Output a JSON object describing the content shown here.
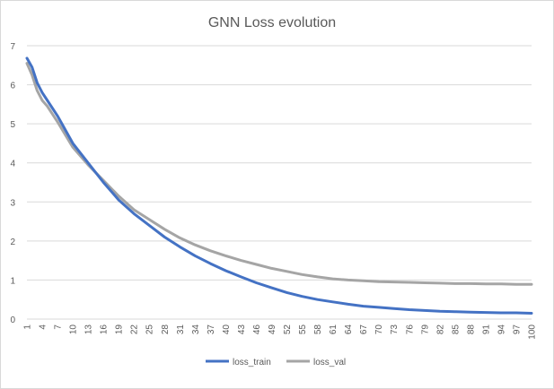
{
  "chart_data": {
    "type": "line",
    "title": "GNN Loss evolution",
    "xlabel": "",
    "ylabel": "",
    "ylim": [
      0,
      7
    ],
    "yticks": [
      0,
      1,
      2,
      3,
      4,
      5,
      6,
      7
    ],
    "xlim": [
      1,
      100
    ],
    "xticks": [
      1,
      4,
      7,
      10,
      13,
      16,
      19,
      22,
      25,
      28,
      31,
      34,
      37,
      40,
      43,
      46,
      49,
      52,
      55,
      58,
      61,
      64,
      67,
      70,
      73,
      76,
      79,
      82,
      85,
      88,
      91,
      94,
      97,
      100
    ],
    "grid": true,
    "legend_position": "bottom",
    "series": [
      {
        "name": "loss_train",
        "color": "#4472c4",
        "x": [
          1,
          2,
          3,
          4,
          5,
          7,
          10,
          13,
          16,
          19,
          22,
          25,
          28,
          31,
          34,
          37,
          40,
          43,
          46,
          49,
          52,
          55,
          58,
          61,
          64,
          67,
          70,
          73,
          76,
          79,
          82,
          85,
          88,
          91,
          94,
          97,
          100
        ],
        "y": [
          6.68,
          6.45,
          6.05,
          5.8,
          5.6,
          5.2,
          4.5,
          4.0,
          3.5,
          3.05,
          2.7,
          2.4,
          2.1,
          1.85,
          1.62,
          1.42,
          1.24,
          1.08,
          0.93,
          0.8,
          0.68,
          0.58,
          0.5,
          0.44,
          0.38,
          0.33,
          0.3,
          0.27,
          0.24,
          0.22,
          0.2,
          0.19,
          0.18,
          0.17,
          0.16,
          0.16,
          0.15
        ]
      },
      {
        "name": "loss_val",
        "color": "#a5a5a5",
        "x": [
          1,
          2,
          3,
          4,
          5,
          7,
          10,
          13,
          16,
          19,
          22,
          25,
          28,
          31,
          34,
          37,
          40,
          43,
          46,
          49,
          52,
          55,
          58,
          61,
          64,
          67,
          70,
          73,
          76,
          79,
          82,
          85,
          88,
          91,
          94,
          97,
          100
        ],
        "y": [
          6.55,
          6.25,
          5.85,
          5.6,
          5.45,
          5.05,
          4.4,
          3.95,
          3.55,
          3.15,
          2.8,
          2.55,
          2.3,
          2.08,
          1.9,
          1.75,
          1.62,
          1.5,
          1.4,
          1.3,
          1.22,
          1.14,
          1.08,
          1.03,
          1.0,
          0.98,
          0.96,
          0.95,
          0.94,
          0.93,
          0.92,
          0.91,
          0.91,
          0.9,
          0.9,
          0.89,
          0.89
        ]
      }
    ]
  }
}
